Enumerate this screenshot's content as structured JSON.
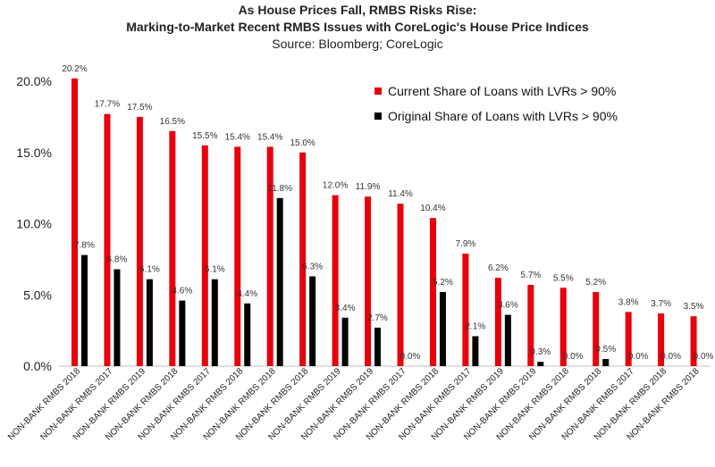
{
  "chart_data": {
    "type": "bar",
    "title": "As House Prices Fall, RMBS Risks Rise:",
    "subtitle": "Marking-to-Market Recent RMBS Issues with CoreLogic's House Price Indices",
    "source": "Source: Bloomberg; CoreLogic",
    "categories": [
      "NON-BANK RMBS 2018",
      "NON-BANK RMBS 2017",
      "NON-BANK RMBS 2019",
      "NON-BANK RMBS 2018",
      "NON-BANK RMBS 2017",
      "NON-BANK RMBS 2018",
      "NON-BANK RMBS 2018",
      "NON-BANK RMBS 2018",
      "NON-BANK RMBS 2019",
      "NON-BANK RMBS 2019",
      "NON-BANK RMBS 2017",
      "NON-BANK RMBS 2018",
      "NON-BANK RMBS 2017",
      "NON-BANK RMBS 2019",
      "NON-BANK RMBS 2019",
      "NON-BANK RMBS 2018",
      "NON-BANK RMBS 2018",
      "NON-BANK RMBS 2017",
      "NON-BANK RMBS 2018",
      "NON-BANK RMBS 2018"
    ],
    "series": [
      {
        "name": "Current Share of Loans with LVRs > 90%",
        "color": "#e8000b",
        "values": [
          20.2,
          17.7,
          17.5,
          16.5,
          15.5,
          15.4,
          15.4,
          15.0,
          12.0,
          11.9,
          11.4,
          10.4,
          7.9,
          6.2,
          5.7,
          5.5,
          5.2,
          3.8,
          3.7,
          3.5
        ]
      },
      {
        "name": "Original Share of Loans with LVRs > 90%",
        "color": "#000000",
        "values": [
          7.8,
          6.8,
          6.1,
          4.6,
          6.1,
          4.4,
          11.8,
          6.3,
          3.4,
          2.7,
          0.0,
          5.2,
          2.1,
          3.6,
          0.3,
          0.0,
          0.5,
          0.0,
          0.0,
          0.0
        ]
      }
    ],
    "yticks": [
      "0.0%",
      "5.0%",
      "10.0%",
      "15.0%",
      "20.0%"
    ],
    "ylim": [
      0,
      22.5
    ],
    "ytick_values": [
      0,
      5,
      10,
      15,
      20
    ],
    "legend_position": "top-right",
    "xlabel": "",
    "ylabel": ""
  }
}
